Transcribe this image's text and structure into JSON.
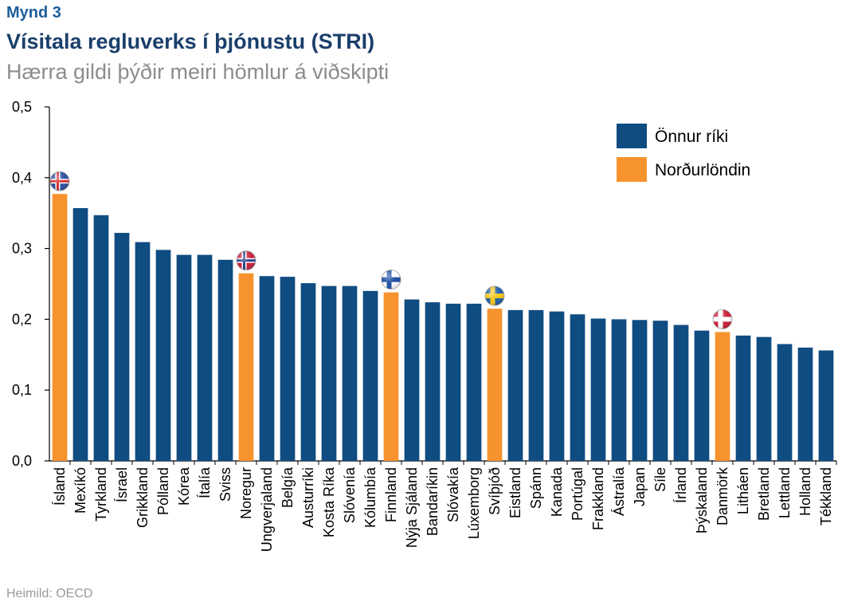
{
  "header": {
    "figure_label": "Mynd 3",
    "title": "Vísitala regluverks í þjónustu (STRI)",
    "subtitle": "Hærra gildi þýðir meiri hömlur á viðskipti"
  },
  "footer": {
    "source": "Heimild: OECD"
  },
  "colors": {
    "other": "#0f4c81",
    "nordic": "#f7932f"
  },
  "chart_data": {
    "type": "bar",
    "ylim": [
      0,
      0.5
    ],
    "yticks": [
      "0,0",
      "0,1",
      "0,2",
      "0,3",
      "0,4",
      "0,5"
    ],
    "grid": false,
    "legend_position": "top-right",
    "categories": [
      "Ísland",
      "Mexíkó",
      "Tyrkland",
      "Ísrael",
      "Grikkland",
      "Pólland",
      "Kórea",
      "Ítalía",
      "Sviss",
      "Noregur",
      "Ungverjaland",
      "Belgía",
      "Austurríki",
      "Kosta Ríka",
      "Slóvenía",
      "Kólumbía",
      "Finnland",
      "Nýja Sjáland",
      "Bandaríkin",
      "Slóvakía",
      "Lúxemborg",
      "Svíþjóð",
      "Eistland",
      "Spánn",
      "Kanada",
      "Portúgal",
      "Frakkland",
      "Ástralía",
      "Japan",
      "Síle",
      "Írland",
      "Þýskaland",
      "Danmörk",
      "Litháen",
      "Bretland",
      "Lettland",
      "Holland",
      "Tékkland"
    ],
    "values": [
      0.377,
      0.357,
      0.347,
      0.322,
      0.309,
      0.298,
      0.291,
      0.291,
      0.284,
      0.265,
      0.261,
      0.26,
      0.251,
      0.247,
      0.247,
      0.24,
      0.238,
      0.228,
      0.224,
      0.222,
      0.222,
      0.215,
      0.213,
      0.213,
      0.211,
      0.207,
      0.201,
      0.2,
      0.199,
      0.198,
      0.192,
      0.184,
      0.182,
      0.177,
      0.175,
      0.165,
      0.16,
      0.156
    ],
    "nordic": [
      true,
      false,
      false,
      false,
      false,
      false,
      false,
      false,
      false,
      true,
      false,
      false,
      false,
      false,
      false,
      false,
      true,
      false,
      false,
      false,
      false,
      true,
      false,
      false,
      false,
      false,
      false,
      false,
      false,
      false,
      false,
      false,
      true,
      false,
      false,
      false,
      false,
      false
    ],
    "flags": [
      "iceland",
      null,
      null,
      null,
      null,
      null,
      null,
      null,
      null,
      "norway",
      null,
      null,
      null,
      null,
      null,
      null,
      "finland",
      null,
      null,
      null,
      null,
      "sweden",
      null,
      null,
      null,
      null,
      null,
      null,
      null,
      null,
      null,
      null,
      "denmark",
      null,
      null,
      null,
      null,
      null
    ],
    "legend": [
      {
        "label": "Önnur ríki",
        "color_key": "other"
      },
      {
        "label": "Norðurlöndin",
        "color_key": "nordic"
      }
    ]
  }
}
